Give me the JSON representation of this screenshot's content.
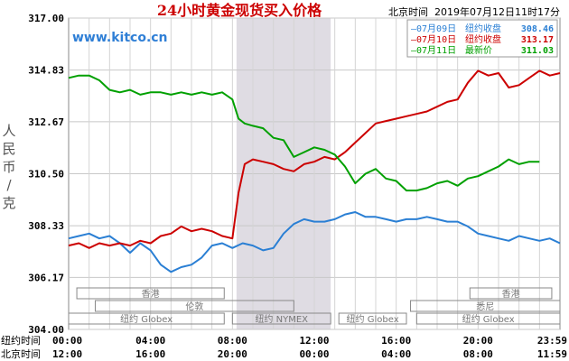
{
  "chart_data": {
    "type": "line",
    "title": "24小时黄金现货买入价格",
    "watermark": "www.kitco.cn",
    "timestamp": "北京时间  2019年07月12日11时17分",
    "ylabel": "人民币/克",
    "ylim": [
      304.0,
      317.0
    ],
    "y_ticks": [
      "317.00",
      "314.83",
      "312.67",
      "310.50",
      "308.33",
      "306.17",
      "304.00"
    ],
    "y_tick_values": [
      317.0,
      314.83,
      312.67,
      310.5,
      308.33,
      306.17,
      304.0
    ],
    "x_range_hours": [
      0,
      24
    ],
    "x_rows": [
      {
        "label": "纽约时间",
        "ticks": [
          "00:00",
          "04:00",
          "08:00",
          "12:00",
          "16:00",
          "20:00",
          "23:59"
        ]
      },
      {
        "label": "北京时间",
        "ticks": [
          "12:00",
          "16:00",
          "20:00",
          "00:00",
          "04:00",
          "08:00",
          "11:59"
        ]
      }
    ],
    "x_tick_hours": [
      0,
      4,
      8,
      12,
      16,
      20,
      24
    ],
    "shaded_region_hours": [
      8.2,
      12.8
    ],
    "grid": true,
    "legend_position": "top-right",
    "legend": [
      {
        "date": "07月09日",
        "label": "纽约收盘",
        "value": "308.46",
        "color": "#2a7fd4"
      },
      {
        "date": "07月10日",
        "label": "纽约收盘",
        "value": "313.17",
        "color": "#cc0000"
      },
      {
        "date": "07月11日",
        "label": "最新价",
        "value": "311.03",
        "color": "#00a000"
      }
    ],
    "sessions": [
      {
        "label": "香港",
        "start": 0.4,
        "end": 7.6,
        "row": 1
      },
      {
        "label": "香港",
        "start": 19.6,
        "end": 23.6,
        "row": 1
      },
      {
        "label": "伦敦",
        "start": 1.3,
        "end": 11.0,
        "row": 2
      },
      {
        "label": "悉尼",
        "start": 16.7,
        "end": 24.0,
        "row": 2
      },
      {
        "label": "纽约 Globex",
        "start": 0.0,
        "end": 7.6,
        "row": 3
      },
      {
        "label": "纽约 NYMEX",
        "start": 8.0,
        "end": 12.8,
        "row": 3
      },
      {
        "label": "纽约 Globex",
        "start": 13.2,
        "end": 16.5,
        "row": 3
      },
      {
        "label": "纽约 Globex",
        "start": 17.0,
        "end": 24.0,
        "row": 3
      }
    ],
    "series": [
      {
        "name": "07月09日",
        "color": "#2a7fd4",
        "points": [
          [
            0,
            307.8
          ],
          [
            0.5,
            307.9
          ],
          [
            1,
            308.0
          ],
          [
            1.5,
            307.8
          ],
          [
            2,
            307.9
          ],
          [
            2.5,
            307.6
          ],
          [
            3,
            307.2
          ],
          [
            3.5,
            307.6
          ],
          [
            4,
            307.3
          ],
          [
            4.5,
            306.7
          ],
          [
            5,
            306.4
          ],
          [
            5.5,
            306.6
          ],
          [
            6,
            306.7
          ],
          [
            6.5,
            307.0
          ],
          [
            7,
            307.5
          ],
          [
            7.5,
            307.6
          ],
          [
            8,
            307.4
          ],
          [
            8.5,
            307.6
          ],
          [
            9,
            307.5
          ],
          [
            9.5,
            307.3
          ],
          [
            10,
            307.4
          ],
          [
            10.5,
            308.0
          ],
          [
            11,
            308.4
          ],
          [
            11.5,
            308.6
          ],
          [
            12,
            308.5
          ],
          [
            12.5,
            308.5
          ],
          [
            13,
            308.6
          ],
          [
            13.5,
            308.8
          ],
          [
            14,
            308.9
          ],
          [
            14.5,
            308.7
          ],
          [
            15,
            308.7
          ],
          [
            15.5,
            308.6
          ],
          [
            16,
            308.5
          ],
          [
            16.5,
            308.6
          ],
          [
            17,
            308.6
          ],
          [
            17.5,
            308.7
          ],
          [
            18,
            308.6
          ],
          [
            18.5,
            308.5
          ],
          [
            19,
            308.5
          ],
          [
            19.5,
            308.3
          ],
          [
            20,
            308.0
          ],
          [
            20.5,
            307.9
          ],
          [
            21,
            307.8
          ],
          [
            21.5,
            307.7
          ],
          [
            22,
            307.9
          ],
          [
            22.5,
            307.8
          ],
          [
            23,
            307.7
          ],
          [
            23.5,
            307.8
          ],
          [
            24,
            307.6
          ]
        ]
      },
      {
        "name": "07月10日",
        "color": "#cc0000",
        "points": [
          [
            0,
            307.5
          ],
          [
            0.5,
            307.6
          ],
          [
            1,
            307.4
          ],
          [
            1.5,
            307.6
          ],
          [
            2,
            307.5
          ],
          [
            2.5,
            307.6
          ],
          [
            3,
            307.5
          ],
          [
            3.5,
            307.7
          ],
          [
            4,
            307.6
          ],
          [
            4.5,
            307.9
          ],
          [
            5,
            308.0
          ],
          [
            5.5,
            308.3
          ],
          [
            6,
            308.1
          ],
          [
            6.5,
            308.2
          ],
          [
            7,
            308.1
          ],
          [
            7.5,
            307.9
          ],
          [
            8,
            307.8
          ],
          [
            8.3,
            309.7
          ],
          [
            8.6,
            310.9
          ],
          [
            9,
            311.1
          ],
          [
            9.5,
            311.0
          ],
          [
            10,
            310.9
          ],
          [
            10.5,
            310.7
          ],
          [
            11,
            310.6
          ],
          [
            11.5,
            310.9
          ],
          [
            12,
            311.0
          ],
          [
            12.5,
            311.2
          ],
          [
            13,
            311.1
          ],
          [
            13.5,
            311.4
          ],
          [
            14,
            311.8
          ],
          [
            14.5,
            312.2
          ],
          [
            15,
            312.6
          ],
          [
            15.5,
            312.7
          ],
          [
            16,
            312.8
          ],
          [
            16.5,
            312.9
          ],
          [
            17,
            313.0
          ],
          [
            17.5,
            313.1
          ],
          [
            18,
            313.3
          ],
          [
            18.5,
            313.5
          ],
          [
            19,
            313.6
          ],
          [
            19.5,
            314.3
          ],
          [
            20,
            314.8
          ],
          [
            20.5,
            314.6
          ],
          [
            21,
            314.7
          ],
          [
            21.5,
            314.1
          ],
          [
            22,
            314.2
          ],
          [
            22.5,
            314.5
          ],
          [
            23,
            314.8
          ],
          [
            23.5,
            314.6
          ],
          [
            24,
            314.7
          ]
        ]
      },
      {
        "name": "07月11日",
        "color": "#00a000",
        "points": [
          [
            0,
            314.5
          ],
          [
            0.5,
            314.6
          ],
          [
            1,
            314.6
          ],
          [
            1.5,
            314.4
          ],
          [
            2,
            314.0
          ],
          [
            2.5,
            313.9
          ],
          [
            3,
            314.0
          ],
          [
            3.5,
            313.8
          ],
          [
            4,
            313.9
          ],
          [
            4.5,
            313.9
          ],
          [
            5,
            313.8
          ],
          [
            5.5,
            313.9
          ],
          [
            6,
            313.8
          ],
          [
            6.5,
            313.9
          ],
          [
            7,
            313.8
          ],
          [
            7.5,
            313.9
          ],
          [
            8,
            313.6
          ],
          [
            8.3,
            312.8
          ],
          [
            8.6,
            312.6
          ],
          [
            9,
            312.5
          ],
          [
            9.5,
            312.4
          ],
          [
            10,
            312.0
          ],
          [
            10.5,
            311.9
          ],
          [
            11,
            311.2
          ],
          [
            11.5,
            311.4
          ],
          [
            12,
            311.6
          ],
          [
            12.5,
            311.5
          ],
          [
            13,
            311.3
          ],
          [
            13.5,
            310.8
          ],
          [
            14,
            310.1
          ],
          [
            14.5,
            310.5
          ],
          [
            15,
            310.7
          ],
          [
            15.5,
            310.3
          ],
          [
            16,
            310.2
          ],
          [
            16.5,
            309.8
          ],
          [
            17,
            309.8
          ],
          [
            17.5,
            309.9
          ],
          [
            18,
            310.1
          ],
          [
            18.5,
            310.2
          ],
          [
            19,
            310.0
          ],
          [
            19.5,
            310.3
          ],
          [
            20,
            310.4
          ],
          [
            20.5,
            310.6
          ],
          [
            21,
            310.8
          ],
          [
            21.5,
            311.1
          ],
          [
            22,
            310.9
          ],
          [
            22.5,
            311.0
          ],
          [
            23,
            311.0
          ]
        ]
      }
    ]
  }
}
